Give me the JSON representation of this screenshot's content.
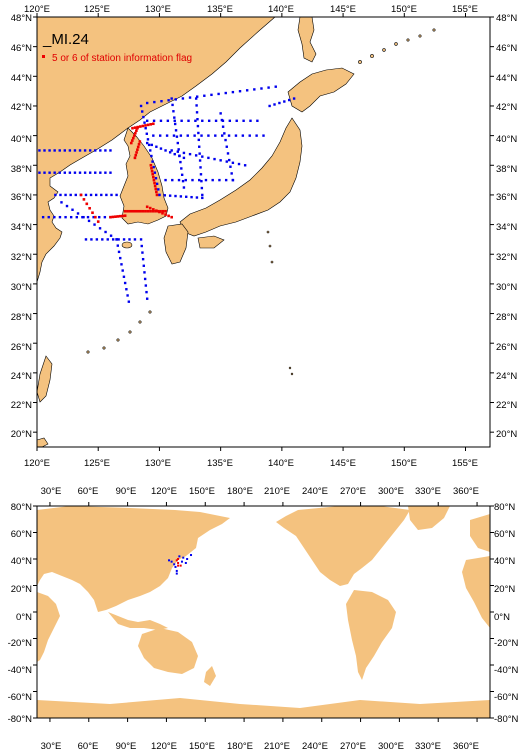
{
  "colors": {
    "land": "#f4c27f",
    "ocean": "#ffffff",
    "frame": "#000000",
    "station": "#0000ee",
    "flagged": "#ee0000"
  },
  "regional_map": {
    "title": "_MI.24",
    "legend_label": "5 or 6 of station information flag",
    "lon_labels": [
      "120°E",
      "125°E",
      "130°E",
      "135°E",
      "140°E",
      "145°E",
      "150°E",
      "155°E"
    ],
    "lat_labels": [
      "48°N",
      "46°N",
      "44°N",
      "42°N",
      "40°N",
      "38°N",
      "36°N",
      "34°N",
      "32°N",
      "30°N",
      "28°N",
      "26°N",
      "24°N",
      "22°N",
      "20°N"
    ]
  },
  "global_map": {
    "lon_labels": [
      "30°E",
      "60°E",
      "90°E",
      "120°E",
      "150°E",
      "180°E",
      "210°E",
      "240°E",
      "270°E",
      "300°E",
      "330°E",
      "360°E"
    ],
    "lat_labels": [
      "80°N",
      "60°N",
      "40°N",
      "20°N",
      "0°N",
      "-20°N",
      "-40°N",
      "-60°N",
      "-80°N"
    ]
  }
}
